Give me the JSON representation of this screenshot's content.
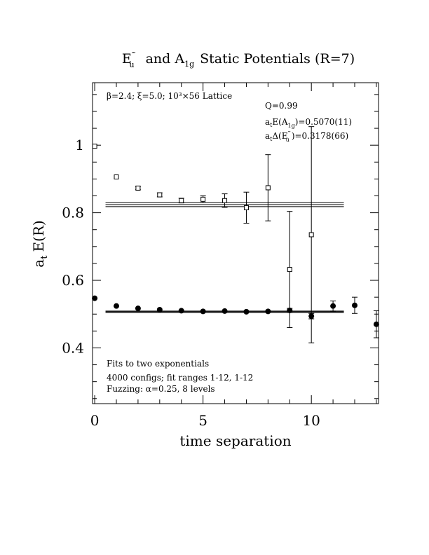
{
  "chart_data": {
    "type": "scatter",
    "title": {
      "part1_base": "E",
      "part1_sup": "‴",
      "part1_sub": "u",
      "part2": "and A",
      "part2_sub": "1g",
      "part3": "Static Potentials (R=7)"
    },
    "xlabel": "time separation",
    "ylabel_base": "a",
    "ylabel_sub": "t",
    "ylabel_rest": "E(R)",
    "xlim": [
      -0.1,
      13.1
    ],
    "ylim": [
      0.235,
      1.185
    ],
    "x_ticks": [
      0,
      5,
      10
    ],
    "y_ticks": [
      0.4,
      0.6,
      0.8,
      1
    ],
    "y_tick_labels": [
      "0.4",
      "0.6",
      "0.8",
      "1"
    ],
    "x_tick_labels": [
      "0",
      "5",
      "10"
    ],
    "annotations": {
      "lattice_line": "β=2.4; ξ=5.0; 10³×56 Lattice",
      "q_line": "Q=0.99",
      "a1g_line_a": "a",
      "a1g_line_t": "t",
      "a1g_line_mid": "E(A",
      "a1g_line_sub": "1g",
      "a1g_line_end": ")=0.5070(11)",
      "eu_line_a": "a",
      "eu_line_t": "t",
      "eu_line_mid": "Δ(E",
      "eu_line_sup": "‴",
      "eu_line_sub": "u",
      "eu_line_end": ")=0.3178(66)",
      "fits_line1": "Fits to two exponentials",
      "fits_line2": "4000 configs; fit ranges 1-12, 1-12",
      "fits_line3": "Fuzzing: α=0.25, 8 levels"
    },
    "series": [
      {
        "marker": "open-square",
        "x": [
          0,
          1,
          2,
          3,
          4,
          5,
          6,
          7,
          8,
          9,
          10
        ],
        "y": [
          0.997,
          0.906,
          0.873,
          0.853,
          0.836,
          0.84,
          0.836,
          0.815,
          0.874,
          0.632,
          0.735
        ],
        "err": [
          0.003,
          0.004,
          0.005,
          0.006,
          0.007,
          0.01,
          0.02,
          0.046,
          0.098,
          0.172,
          0.32
        ]
      },
      {
        "marker": "filled-circle",
        "x": [
          0,
          1,
          2,
          3,
          4,
          5,
          6,
          7,
          8,
          9,
          10,
          11,
          12,
          13
        ],
        "y": [
          0.547,
          0.524,
          0.517,
          0.513,
          0.51,
          0.508,
          0.509,
          0.507,
          0.508,
          0.511,
          0.494,
          0.524,
          0.526,
          0.47
        ],
        "err": [
          0.002,
          0.002,
          0.002,
          0.002,
          0.002,
          0.002,
          0.002,
          0.003,
          0.004,
          0.006,
          0.008,
          0.015,
          0.024,
          0.04
        ]
      }
    ],
    "fit_lines": [
      {
        "y": 0.824,
        "x_range": [
          0.5,
          11.5
        ]
      },
      {
        "y": 0.818,
        "x_range": [
          0.5,
          11.5
        ]
      },
      {
        "y": 0.83,
        "x_range": [
          0.5,
          11.5
        ]
      },
      {
        "y": 0.507,
        "x_range": [
          0.5,
          11.5
        ]
      },
      {
        "y": 0.505,
        "x_range": [
          0.5,
          11.5
        ]
      },
      {
        "y": 0.509,
        "x_range": [
          0.5,
          11.5
        ]
      }
    ]
  }
}
